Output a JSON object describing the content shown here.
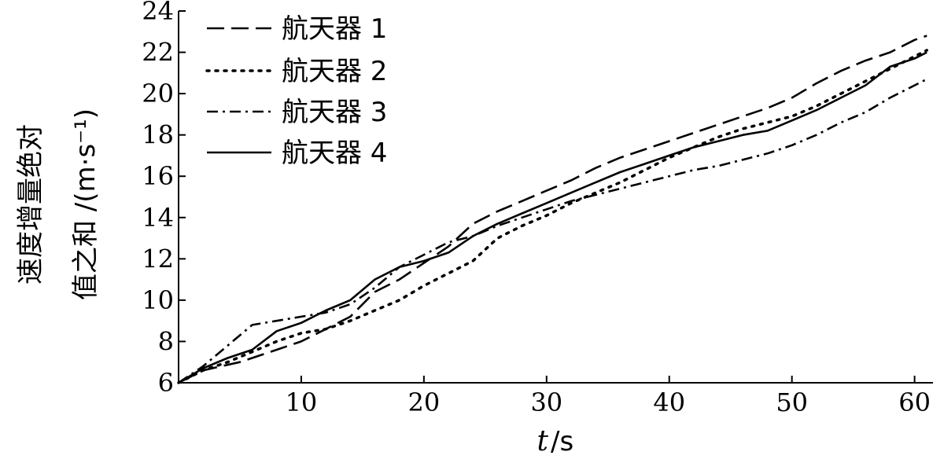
{
  "chart_data": {
    "type": "line",
    "title": "",
    "xlabel_var": "t",
    "xlabel_unit": "/s",
    "ylabel_line1": "速度增量绝对",
    "ylabel_line2": "值之和 /(m·s⁻¹)",
    "xlim": [
      0,
      61.5
    ],
    "ylim": [
      6,
      24
    ],
    "xticks": [
      10,
      20,
      30,
      40,
      50,
      60
    ],
    "yticks": [
      6,
      8,
      10,
      12,
      14,
      16,
      18,
      20,
      22,
      24
    ],
    "grid": false,
    "legend_position": "top-left",
    "series": [
      {
        "name": "航天器 1",
        "style": "dashed",
        "x": [
          0,
          2,
          5,
          8,
          10,
          12,
          14,
          16,
          18,
          20,
          22,
          24,
          26,
          28,
          30,
          32,
          34,
          36,
          38,
          40,
          42,
          44,
          46,
          48,
          50,
          52,
          54,
          56,
          58,
          60,
          61
        ],
        "y": [
          6,
          6.6,
          7.0,
          7.6,
          8.0,
          8.6,
          9.2,
          10.4,
          11.0,
          11.8,
          12.6,
          13.7,
          14.3,
          14.8,
          15.3,
          15.8,
          16.4,
          16.9,
          17.3,
          17.7,
          18.1,
          18.5,
          18.9,
          19.3,
          19.8,
          20.5,
          21.1,
          21.6,
          22.0,
          22.6,
          22.8
        ]
      },
      {
        "name": "航天器 2",
        "style": "dotted",
        "x": [
          0,
          2,
          4,
          6,
          8,
          10,
          12,
          14,
          16,
          18,
          20,
          22,
          24,
          26,
          28,
          30,
          32,
          34,
          36,
          38,
          40,
          42,
          44,
          46,
          48,
          50,
          52,
          54,
          56,
          58,
          60,
          61
        ],
        "y": [
          6,
          6.6,
          7.0,
          7.5,
          8.0,
          8.4,
          8.6,
          9.0,
          9.5,
          10.0,
          10.7,
          11.3,
          11.9,
          13.0,
          13.6,
          14.1,
          14.7,
          15.2,
          15.7,
          16.3,
          16.9,
          17.4,
          17.9,
          18.3,
          18.6,
          18.9,
          19.4,
          20.0,
          20.6,
          21.2,
          21.8,
          22.1
        ]
      },
      {
        "name": "航天器 3",
        "style": "dashdot",
        "x": [
          0,
          2,
          4,
          6,
          8,
          10,
          12,
          14,
          16,
          18,
          20,
          22,
          24,
          26,
          28,
          30,
          32,
          34,
          36,
          38,
          40,
          42,
          44,
          46,
          48,
          50,
          52,
          54,
          56,
          58,
          60,
          61
        ],
        "y": [
          6,
          6.8,
          7.8,
          8.8,
          9.0,
          9.2,
          9.4,
          9.8,
          10.6,
          11.6,
          12.2,
          12.8,
          13.1,
          13.6,
          14.0,
          14.4,
          14.8,
          15.1,
          15.4,
          15.7,
          16.0,
          16.3,
          16.5,
          16.8,
          17.1,
          17.5,
          18.0,
          18.6,
          19.1,
          19.8,
          20.4,
          20.7
        ]
      },
      {
        "name": "航天器 4",
        "style": "solid",
        "x": [
          0,
          2,
          4,
          6,
          8,
          10,
          12,
          14,
          16,
          18,
          20,
          22,
          24,
          26,
          28,
          30,
          32,
          34,
          36,
          38,
          40,
          42,
          44,
          46,
          48,
          50,
          52,
          54,
          56,
          58,
          60,
          61
        ],
        "y": [
          6,
          6.7,
          7.2,
          7.6,
          8.5,
          8.9,
          9.5,
          10.0,
          11.0,
          11.6,
          11.9,
          12.3,
          13.1,
          13.7,
          14.2,
          14.7,
          15.2,
          15.7,
          16.2,
          16.6,
          17.0,
          17.4,
          17.7,
          18.0,
          18.2,
          18.7,
          19.2,
          19.8,
          20.4,
          21.3,
          21.7,
          22.0
        ]
      }
    ]
  }
}
